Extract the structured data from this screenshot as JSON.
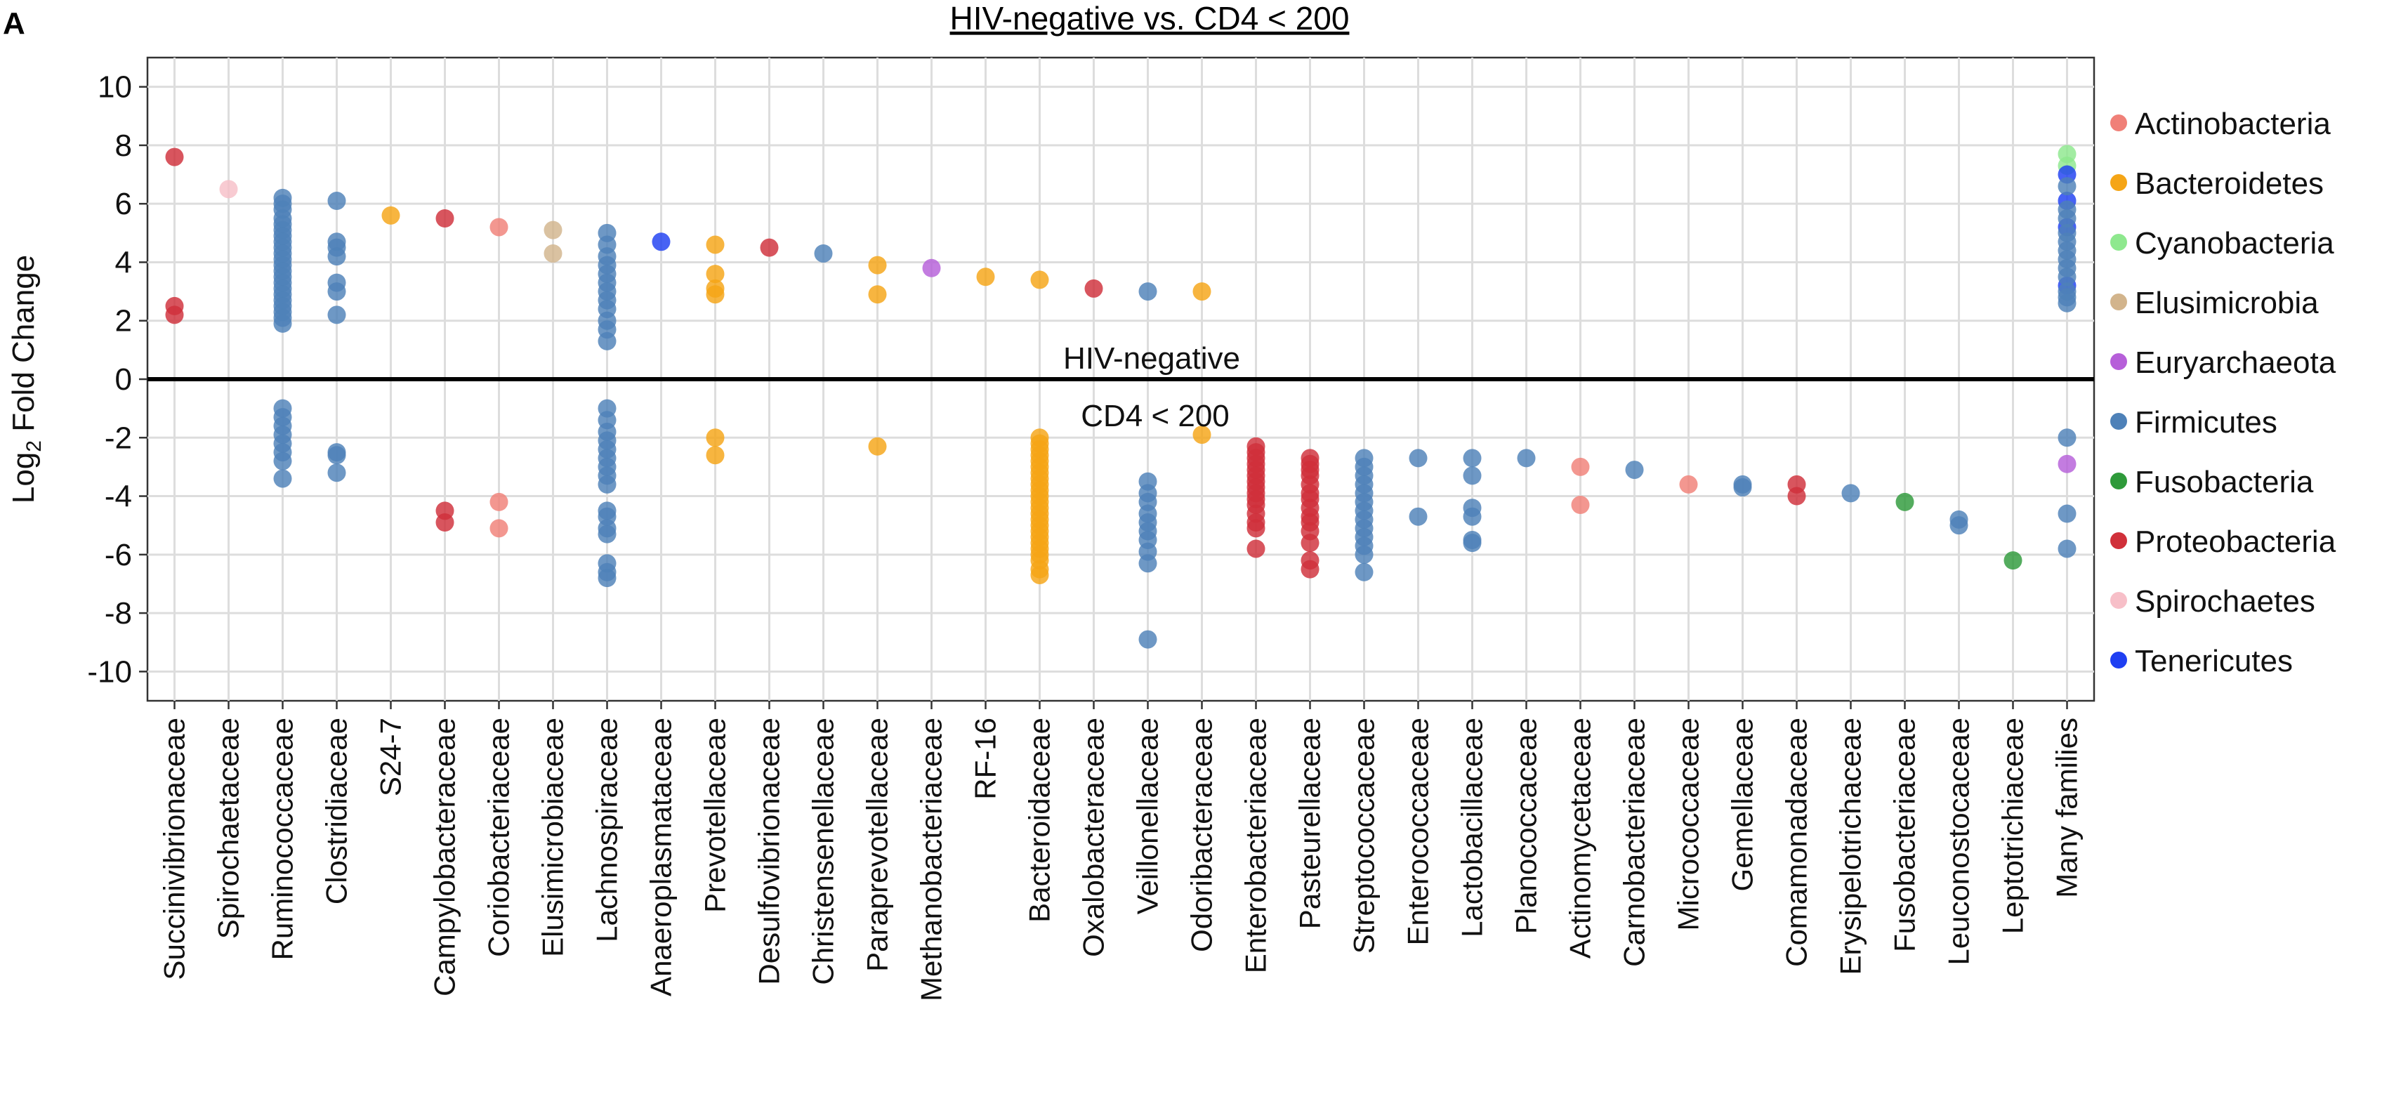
{
  "panel_letter": "A",
  "chart_data": {
    "type": "scatter",
    "title": "HIV-negative vs. CD4 < 200",
    "ylabel_prefix": "Log",
    "ylabel_sub": "2",
    "ylabel_suffix": " Fold Change",
    "ylim": [
      -11,
      11
    ],
    "yticks": [
      10,
      8,
      6,
      4,
      2,
      0,
      -2,
      -4,
      -6,
      -8,
      -10
    ],
    "grid": true,
    "legend_position": "right",
    "zone_labels": {
      "above": "HIV-negative",
      "below": "CD4 < 200"
    },
    "categories": [
      "Succinivibrionaceae",
      "Spirochaetaceae",
      "Ruminococcaceae",
      "Clostridiaceae",
      "S24-7",
      "Campylobacteraceae",
      "Coriobacteriaceae",
      "Elusimicrobiaceae",
      "Lachnospiraceae",
      "Anaeroplasmataceae",
      "Prevotellaceae",
      "Desulfovibrionaceae",
      "Christensenellaceae",
      "Paraprevotellaceae",
      "Methanobacteriaceae",
      "RF-16",
      "Bacteroidaceae",
      "Oxalobacteraceae",
      "Veillonellaceae",
      "Odoribacteraceae",
      "Enterobacteriaceae",
      "Pasteurellaceae",
      "Streptococcaceae",
      "Enterococcaceae",
      "Lactobacillaceae",
      "Planococcaceae",
      "Actinomycetaceae",
      "Carnobacteriaceae",
      "Micrococcaceae",
      "Gemellaceae",
      "Comamonadaceae",
      "Erysipelotrichaceae",
      "Fusobacteriaceae",
      "Leuconostocaceae",
      "Leptotrichiaceae",
      "Many families"
    ],
    "legend": [
      {
        "name": "Actinobacteria",
        "color": "#F08078"
      },
      {
        "name": "Bacteroidetes",
        "color": "#F5A516"
      },
      {
        "name": "Cyanobacteria",
        "color": "#8EE88E"
      },
      {
        "name": "Elusimicrobia",
        "color": "#D2B48C"
      },
      {
        "name": "Euryarchaeota",
        "color": "#B65FD9"
      },
      {
        "name": "Firmicutes",
        "color": "#4E81B8"
      },
      {
        "name": "Fusobacteria",
        "color": "#2E9A3A"
      },
      {
        "name": "Proteobacteria",
        "color": "#D0303A"
      },
      {
        "name": "Spirochaetes",
        "color": "#F7BFC8"
      },
      {
        "name": "Tenericutes",
        "color": "#1F3FF2"
      }
    ],
    "points": [
      [
        "Succinivibrionaceae",
        "Proteobacteria",
        [
          7.6,
          2.5,
          2.2
        ]
      ],
      [
        "Spirochaetaceae",
        "Spirochaetes",
        [
          6.5
        ]
      ],
      [
        "Ruminococcaceae",
        "Firmicutes",
        [
          6.2,
          6.0,
          5.8,
          5.5,
          5.3,
          5.1,
          4.9,
          4.7,
          4.5,
          4.3,
          4.1,
          3.9,
          3.7,
          3.5,
          3.3,
          3.1,
          2.9,
          2.7,
          2.5,
          2.3,
          2.1,
          1.9,
          -1.0,
          -1.3,
          -1.6,
          -1.9,
          -2.2,
          -2.5,
          -2.8,
          -3.4
        ]
      ],
      [
        "Clostridiaceae",
        "Firmicutes",
        [
          6.1,
          4.7,
          4.5,
          4.2,
          3.3,
          3.0,
          2.2,
          -2.5,
          -2.6,
          -3.2
        ]
      ],
      [
        "S24-7",
        "Bacteroidetes",
        [
          5.6
        ]
      ],
      [
        "Campylobacteraceae",
        "Proteobacteria",
        [
          5.5,
          -4.5,
          -4.9
        ]
      ],
      [
        "Coriobacteriaceae",
        "Actinobacteria",
        [
          5.2,
          -4.2,
          -5.1
        ]
      ],
      [
        "Elusimicrobiaceae",
        "Elusimicrobia",
        [
          5.1,
          4.3
        ]
      ],
      [
        "Lachnospiraceae",
        "Firmicutes",
        [
          5.0,
          4.6,
          4.2,
          3.9,
          3.6,
          3.3,
          3.0,
          2.7,
          2.4,
          2.0,
          1.7,
          1.3,
          -1.0,
          -1.4,
          -1.8,
          -2.1,
          -2.4,
          -2.7,
          -3.0,
          -3.3,
          -3.6,
          -4.5,
          -4.7,
          -5.1,
          -5.3,
          -6.3,
          -6.6,
          -6.8
        ]
      ],
      [
        "Anaeroplasmataceae",
        "Tenericutes",
        [
          4.7
        ]
      ],
      [
        "Prevotellaceae",
        "Bacteroidetes",
        [
          4.6,
          3.6,
          3.1,
          2.9,
          -2.0,
          -2.6
        ]
      ],
      [
        "Desulfovibrionaceae",
        "Proteobacteria",
        [
          4.5
        ]
      ],
      [
        "Christensenellaceae",
        "Firmicutes",
        [
          4.3
        ]
      ],
      [
        "Paraprevotellaceae",
        "Bacteroidetes",
        [
          3.9,
          2.9,
          -2.3
        ]
      ],
      [
        "Methanobacteriaceae",
        "Euryarchaeota",
        [
          3.8
        ]
      ],
      [
        "RF-16",
        "Bacteroidetes",
        [
          3.5
        ]
      ],
      [
        "Bacteroidaceae",
        "Bacteroidetes",
        [
          3.4,
          -2.0,
          -2.2,
          -2.4,
          -2.6,
          -2.8,
          -3.0,
          -3.2,
          -3.4,
          -3.6,
          -3.8,
          -4.0,
          -4.2,
          -4.4,
          -4.6,
          -4.8,
          -5.0,
          -5.2,
          -5.4,
          -5.6,
          -5.8,
          -6.0,
          -6.2,
          -6.5,
          -6.7
        ]
      ],
      [
        "Oxalobacteraceae",
        "Proteobacteria",
        [
          3.1
        ]
      ],
      [
        "Veillonellaceae",
        "Firmicutes",
        [
          3.0,
          -3.5,
          -3.9,
          -4.2,
          -4.6,
          -4.9,
          -5.2,
          -5.5,
          -5.9,
          -6.3,
          -8.9
        ]
      ],
      [
        "Odoribacteraceae",
        "Bacteroidetes",
        [
          3.0,
          -1.9
        ]
      ],
      [
        "Enterobacteriaceae",
        "Proteobacteria",
        [
          -2.3,
          -2.5,
          -2.7,
          -2.9,
          -3.1,
          -3.3,
          -3.5,
          -3.7,
          -3.9,
          -4.1,
          -4.3,
          -4.6,
          -4.9,
          -5.1,
          -5.8
        ]
      ],
      [
        "Pasteurellaceae",
        "Proteobacteria",
        [
          -2.7,
          -2.9,
          -3.1,
          -3.3,
          -3.6,
          -3.9,
          -4.1,
          -4.4,
          -4.7,
          -4.9,
          -5.2,
          -5.6,
          -6.2,
          -6.5
        ]
      ],
      [
        "Streptococcaceae",
        "Firmicutes",
        [
          -2.7,
          -3.0,
          -3.3,
          -3.6,
          -3.9,
          -4.2,
          -4.5,
          -4.8,
          -5.1,
          -5.4,
          -5.7,
          -6.0,
          -6.6
        ]
      ],
      [
        "Enterococcaceae",
        "Firmicutes",
        [
          -2.7,
          -4.7
        ]
      ],
      [
        "Lactobacillaceae",
        "Firmicutes",
        [
          -2.7,
          -3.3,
          -4.4,
          -4.7,
          -5.5,
          -5.6
        ]
      ],
      [
        "Planococcaceae",
        "Firmicutes",
        [
          -2.7
        ]
      ],
      [
        "Actinomycetaceae",
        "Actinobacteria",
        [
          -3.0,
          -4.3
        ]
      ],
      [
        "Carnobacteriaceae",
        "Firmicutes",
        [
          -3.1
        ]
      ],
      [
        "Micrococcaceae",
        "Actinobacteria",
        [
          -3.6
        ]
      ],
      [
        "Gemellaceae",
        "Firmicutes",
        [
          -3.6,
          -3.7
        ]
      ],
      [
        "Comamonadaceae",
        "Proteobacteria",
        [
          -3.6,
          -4.0
        ]
      ],
      [
        "Erysipelotrichaceae",
        "Firmicutes",
        [
          -3.9
        ]
      ],
      [
        "Fusobacteriaceae",
        "Fusobacteria",
        [
          -4.2
        ]
      ],
      [
        "Leuconostocaceae",
        "Firmicutes",
        [
          -4.8,
          -5.0
        ]
      ],
      [
        "Leptotrichiaceae",
        "Fusobacteria",
        [
          -6.2
        ]
      ],
      [
        "Many families",
        "Cyanobacteria",
        [
          7.7,
          7.3
        ]
      ],
      [
        "Many families",
        "Tenericutes",
        [
          7.0,
          6.1,
          5.2,
          3.2
        ]
      ],
      [
        "Many families",
        "Firmicutes",
        [
          6.6,
          5.8,
          5.5,
          5.0,
          4.7,
          4.4,
          4.1,
          3.8,
          3.5,
          3.0,
          2.8,
          2.6,
          -2.0,
          -4.6,
          -5.8
        ]
      ],
      [
        "Many families",
        "Euryarchaeota",
        [
          -2.9
        ]
      ]
    ]
  }
}
